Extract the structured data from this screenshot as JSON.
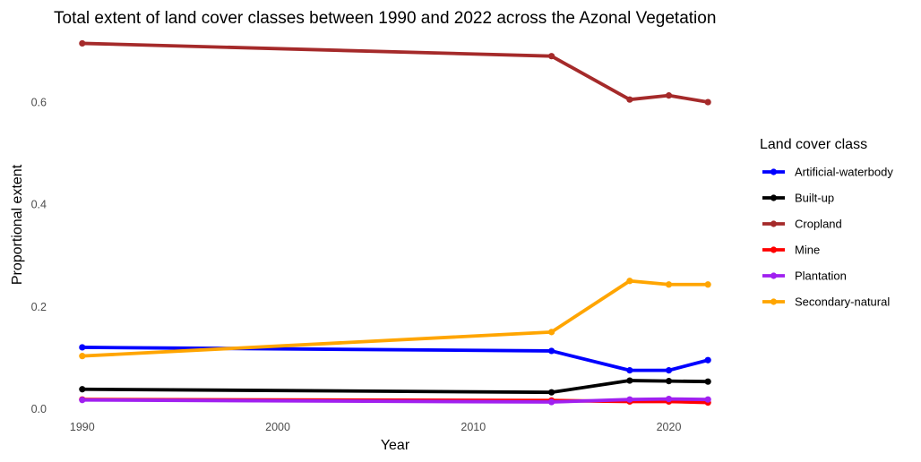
{
  "chart_data": {
    "type": "line",
    "title": "Total extent of land cover classes between 1990 and 2022 across the Azonal Vegetation",
    "xlabel": "Year",
    "ylabel": "Proportional extent",
    "x": [
      1990,
      2014,
      2018,
      2020,
      2022
    ],
    "xlim": [
      1989,
      2023
    ],
    "ylim": [
      -0.015,
      0.735
    ],
    "xticks": [
      1990,
      2000,
      2010,
      2020
    ],
    "yticks": [
      0.0,
      0.2,
      0.4,
      0.6
    ],
    "ytick_labels": [
      "0.0",
      "0.2",
      "0.4",
      "0.6"
    ],
    "xtick_labels": [
      "1990",
      "2000",
      "2010",
      "2020"
    ],
    "grid": false,
    "legend": {
      "title": "Land cover class",
      "position": "right"
    },
    "series": [
      {
        "name": "Artificial-waterbody",
        "color": "#0000ff",
        "values": [
          0.12,
          0.113,
          0.075,
          0.075,
          0.095
        ]
      },
      {
        "name": "Built-up",
        "color": "#000000",
        "values": [
          0.038,
          0.032,
          0.055,
          0.054,
          0.053
        ]
      },
      {
        "name": "Cropland",
        "color": "#a52a2a",
        "values": [
          0.715,
          0.69,
          0.605,
          0.613,
          0.6
        ]
      },
      {
        "name": "Mine",
        "color": "#ff0000",
        "values": [
          0.018,
          0.016,
          0.014,
          0.014,
          0.012
        ]
      },
      {
        "name": "Plantation",
        "color": "#a020f0",
        "values": [
          0.017,
          0.013,
          0.018,
          0.019,
          0.018
        ]
      },
      {
        "name": "Secondary-natural",
        "color": "#ffa500",
        "values": [
          0.103,
          0.15,
          0.25,
          0.243,
          0.243
        ]
      }
    ]
  }
}
